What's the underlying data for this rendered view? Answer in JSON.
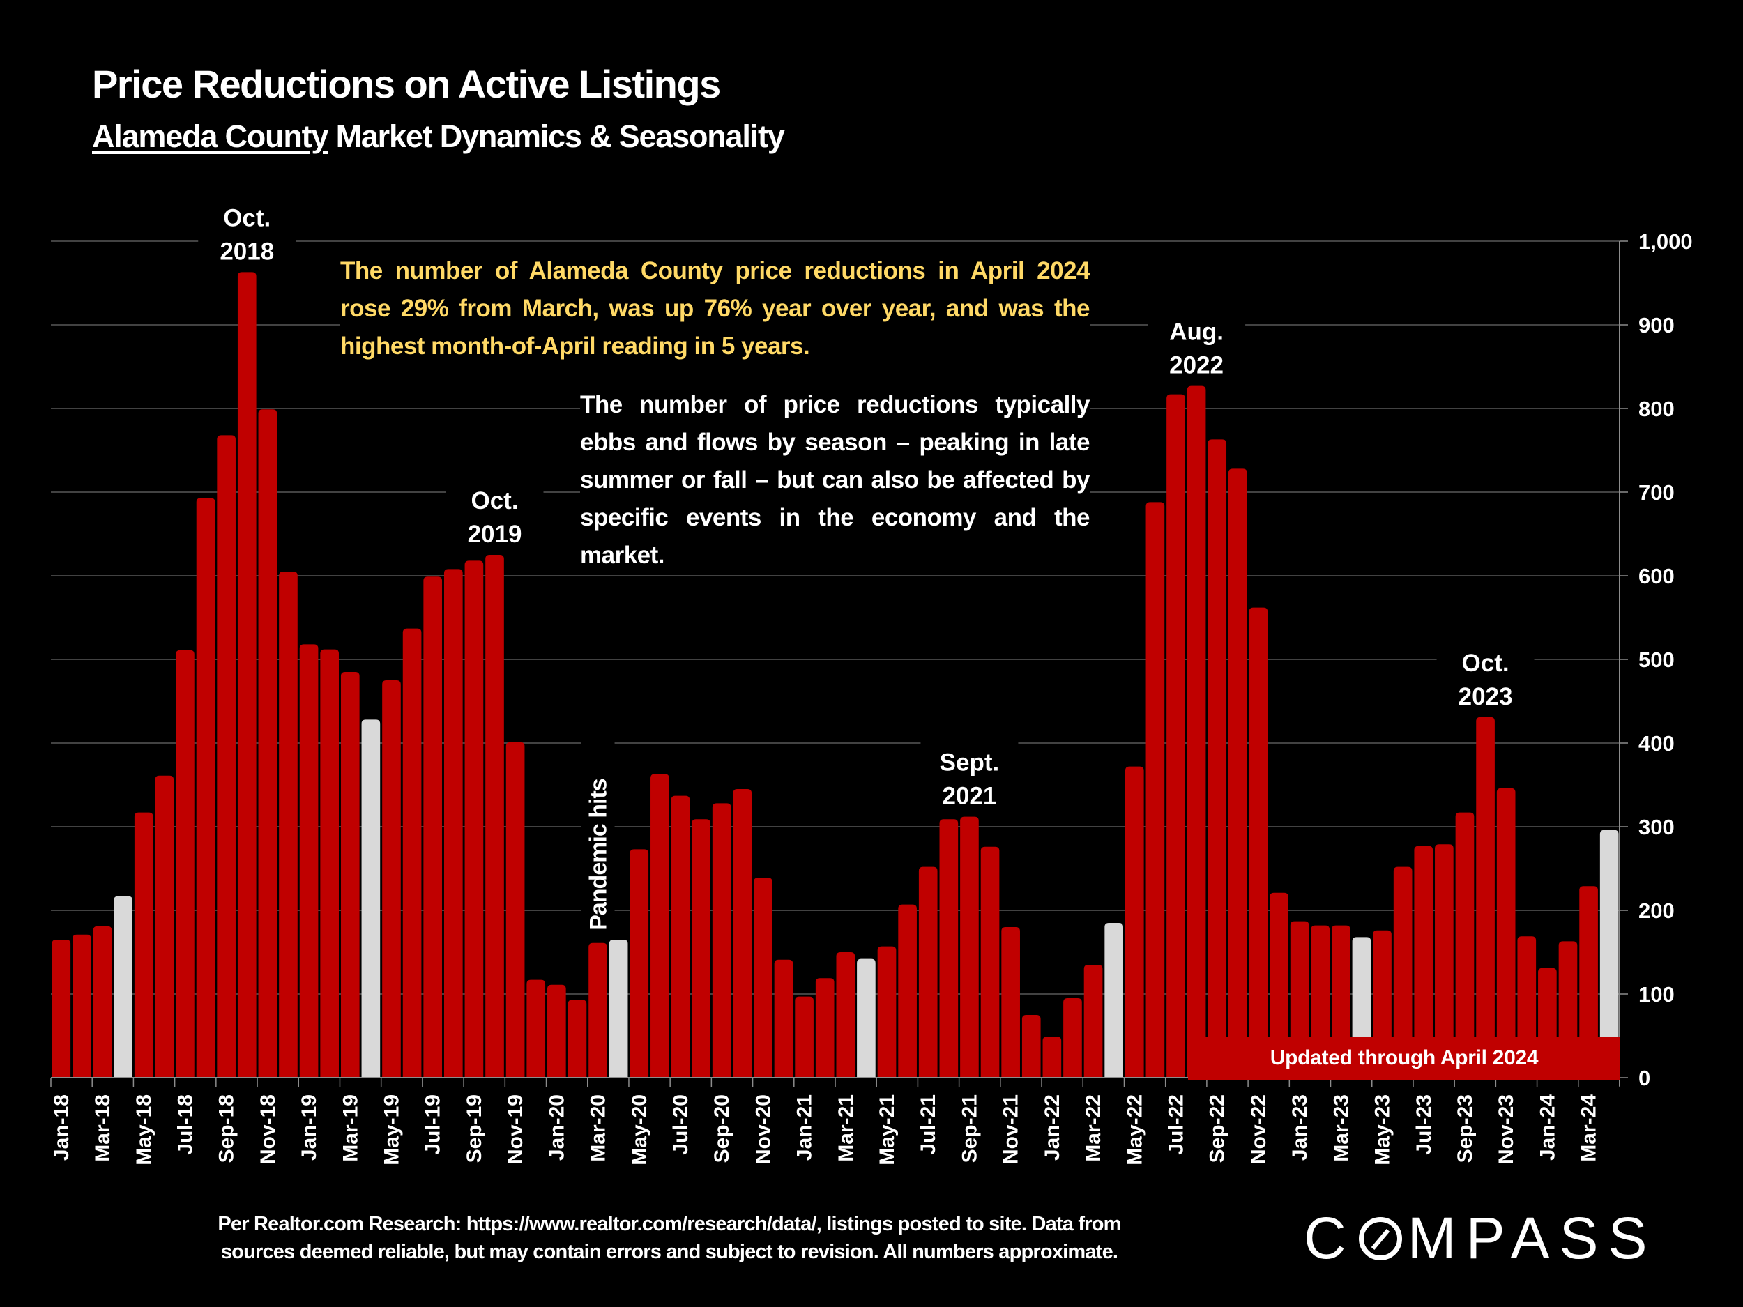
{
  "header": {
    "title": "Price Reductions on Active Listings",
    "subtitle_county": "Alameda County",
    "subtitle_rest": " Market Dynamics & Seasonality"
  },
  "notes": {
    "highlight": "The number of Alameda County price reductions in April 2024 rose 29% from March, was up 76% year over year, and was the highest month-of-April reading in 5 years.",
    "seasonality": "The number of price reductions typically ebbs and flows by season – peaking in late summer or fall – but can also be affected by specific events in the economy and the market."
  },
  "banner": "Updated through April 2024",
  "footer": {
    "line1": "Per Realtor.com Research:  https://www.realtor.com/research/data/, listings posted to site. Data from",
    "line2": "sources deemed reliable, but may contain errors and subject to revision. All numbers approximate."
  },
  "logo": {
    "before": "C",
    "after": "MPASS",
    "icon": "compass-o-icon"
  },
  "colors": {
    "background": "#000000",
    "bar": "#C00000",
    "highlight_bar": "#D9D9D9",
    "note_highlight": "#FFD966",
    "text": "#FFFFFF",
    "grid": "#595959"
  },
  "chart_data": {
    "type": "bar",
    "title": "Price Reductions on Active Listings",
    "subtitle": "Alameda County Market Dynamics & Seasonality",
    "xlabel": "",
    "ylabel": "",
    "y_axis_side": "right",
    "ylim": [
      0,
      1000
    ],
    "yticks": [
      0,
      100,
      200,
      300,
      400,
      500,
      600,
      700,
      800,
      900,
      1000
    ],
    "ytick_labels": [
      "0",
      "100",
      "200",
      "300",
      "400",
      "500",
      "600",
      "700",
      "800",
      "900",
      "1,000"
    ],
    "grid": true,
    "highlight_rule": "April bars shown in light grey",
    "categories": [
      "Jan-18",
      "Feb-18",
      "Mar-18",
      "Apr-18",
      "May-18",
      "Jun-18",
      "Jul-18",
      "Aug-18",
      "Sep-18",
      "Oct-18",
      "Nov-18",
      "Dec-18",
      "Jan-19",
      "Feb-19",
      "Mar-19",
      "Apr-19",
      "May-19",
      "Jun-19",
      "Jul-19",
      "Aug-19",
      "Sep-19",
      "Oct-19",
      "Nov-19",
      "Dec-19",
      "Jan-20",
      "Feb-20",
      "Mar-20",
      "Apr-20",
      "May-20",
      "Jun-20",
      "Jul-20",
      "Aug-20",
      "Sep-20",
      "Oct-20",
      "Nov-20",
      "Dec-20",
      "Jan-21",
      "Feb-21",
      "Mar-21",
      "Apr-21",
      "May-21",
      "Jun-21",
      "Jul-21",
      "Aug-21",
      "Sep-21",
      "Oct-21",
      "Nov-21",
      "Dec-21",
      "Jan-22",
      "Feb-22",
      "Mar-22",
      "Apr-22",
      "May-22",
      "Jun-22",
      "Jul-22",
      "Aug-22",
      "Sep-22",
      "Oct-22",
      "Nov-22",
      "Dec-22",
      "Jan-23",
      "Feb-23",
      "Mar-23",
      "Apr-23",
      "May-23",
      "Jun-23",
      "Jul-23",
      "Aug-23",
      "Sep-23",
      "Oct-23",
      "Nov-23",
      "Dec-23",
      "Jan-24",
      "Feb-24",
      "Mar-24",
      "Apr-24"
    ],
    "values": [
      165,
      171,
      181,
      217,
      317,
      361,
      511,
      693,
      768,
      963,
      799,
      605,
      518,
      512,
      485,
      428,
      475,
      537,
      599,
      608,
      618,
      625,
      401,
      117,
      111,
      93,
      161,
      165,
      273,
      363,
      337,
      309,
      328,
      345,
      239,
      141,
      97,
      119,
      150,
      142,
      157,
      207,
      252,
      309,
      312,
      276,
      180,
      75,
      49,
      95,
      135,
      185,
      372,
      688,
      817,
      827,
      763,
      728,
      562,
      221,
      187,
      182,
      182,
      168,
      176,
      252,
      277,
      279,
      317,
      431,
      346,
      169,
      131,
      163,
      229,
      296
    ],
    "xtick_labels_every": 2,
    "annotations": [
      {
        "text": [
          "Oct.",
          "2018"
        ],
        "category": "Oct-18"
      },
      {
        "text": [
          "Oct.",
          "2019"
        ],
        "category": "Oct-19"
      },
      {
        "text": [
          "Pandemic hits"
        ],
        "category": "Mar-20",
        "rotated": true
      },
      {
        "text": [
          "Sept.",
          "2021"
        ],
        "category": "Sep-21"
      },
      {
        "text": [
          "Aug.",
          "2022"
        ],
        "category": "Aug-22"
      },
      {
        "text": [
          "Oct.",
          "2023"
        ],
        "category": "Oct-23"
      }
    ]
  }
}
